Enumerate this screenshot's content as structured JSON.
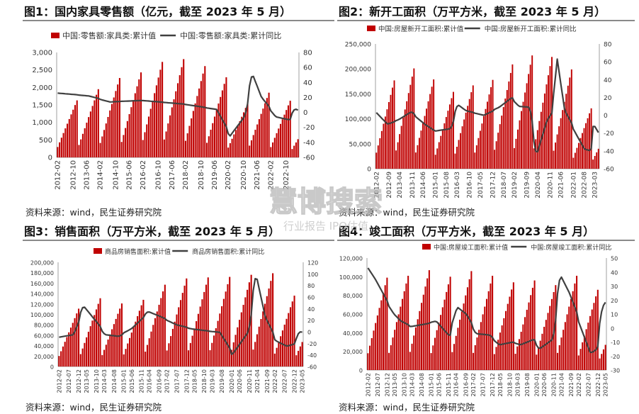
{
  "panels": [
    {
      "title": "图1：国内家具零售额（亿元，截至 2023 年 5 月）",
      "source": "资料来源：wind，民生证券研究院"
    },
    {
      "title": "图2：新开工面积（万平方米，截至 2023 年 5 月）",
      "source": "资料来源：wind，民生证券研究院"
    },
    {
      "title": "图3：销售面积（万平方米，截至 2023 年 5 月）",
      "source": "资料来源：wind，民生证券研究院"
    },
    {
      "title": "图4：竣工面积（万平方米，截至 2023 年 5 月）",
      "source": "资料来源：wind，民生证券研究院"
    }
  ],
  "watermark": {
    "main": "慧博搜索",
    "sub": "行业报告 IPO估值"
  },
  "colors": {
    "bar": "#c00000",
    "line": "#404040",
    "grid": "#d9d9d9"
  },
  "chart_data": [
    {
      "type": "bar",
      "legend": [
        "中国:零售额:家具类:累计值",
        "中国:零售额:家具类:累计同比"
      ],
      "ylim": [
        0,
        3000
      ],
      "y2lim": [
        -60,
        80
      ],
      "yticks": [
        "0",
        "500",
        "1,000",
        "1,500",
        "2,000",
        "2,500",
        "3,000"
      ],
      "y2ticks": [
        "-60",
        "-40",
        "-20",
        "0",
        "20",
        "40",
        "60",
        "80"
      ],
      "xticks": [
        "2012-02",
        "2012-10",
        "2013-06",
        "2014-02",
        "2014-10",
        "2015-06",
        "2016-02",
        "2016-10",
        "2017-06",
        "2018-02",
        "2018-10",
        "2019-06",
        "2020-02",
        "2020-10",
        "2021-06",
        "2022-02",
        "2022-10"
      ],
      "start": [
        2012,
        2
      ],
      "end": [
        2023,
        5
      ],
      "annual_peaks": [
        1630,
        1950,
        2270,
        2430,
        2730,
        2810,
        2610,
        2290,
        1540,
        1850,
        1620,
        520
      ],
      "yoy_anchors": [
        [
          2012,
          26
        ],
        [
          2013.5,
          22
        ],
        [
          2014.5,
          14
        ],
        [
          2016,
          16
        ],
        [
          2018,
          11
        ],
        [
          2019.5,
          4
        ],
        [
          2020.15,
          -32
        ],
        [
          2020.8,
          -5
        ],
        [
          2021.2,
          52
        ],
        [
          2021.6,
          20
        ],
        [
          2022.3,
          -6
        ],
        [
          2022.9,
          -10
        ],
        [
          2023.2,
          5
        ],
        [
          2023.4,
          2
        ]
      ]
    },
    {
      "type": "bar",
      "legend": [
        "中国:房屋新开工面积:累计值",
        "中国:房屋新开工面积:累计同比"
      ],
      "ylim": [
        0,
        250000
      ],
      "y2lim": [
        -60,
        80
      ],
      "yticks": [
        "0",
        "50,000",
        "100,000",
        "150,000",
        "200,000",
        "250,000"
      ],
      "y2ticks": [
        "-60",
        "-40",
        "-20",
        "0",
        "20",
        "40",
        "60",
        "80"
      ],
      "xticks": [
        "2012-02",
        "2012-09",
        "2013-04",
        "2013-11",
        "2014-06",
        "2015-01",
        "2015-08",
        "2016-03",
        "2016-10",
        "2017-05",
        "2017-12",
        "2018-07",
        "2019-02",
        "2019-09",
        "2020-04",
        "2020-11",
        "2021-06",
        "2022-01",
        "2022-08",
        "2023-03"
      ],
      "start": [
        2012,
        2
      ],
      "end": [
        2023,
        5
      ],
      "annual_peaks": [
        177000,
        201000,
        179000,
        154000,
        167000,
        178000,
        209000,
        227000,
        224000,
        199000,
        121000,
        40000
      ],
      "yoy_anchors": [
        [
          2012,
          5
        ],
        [
          2012.6,
          -10
        ],
        [
          2013.2,
          -5
        ],
        [
          2013.8,
          4
        ],
        [
          2014.5,
          -10
        ],
        [
          2015,
          -18
        ],
        [
          2015.8,
          -15
        ],
        [
          2016.2,
          12
        ],
        [
          2016.6,
          5
        ],
        [
          2017.5,
          0
        ],
        [
          2018.3,
          9
        ],
        [
          2018.9,
          20
        ],
        [
          2019.3,
          10
        ],
        [
          2019.8,
          9
        ],
        [
          2020.2,
          -45
        ],
        [
          2020.7,
          -5
        ],
        [
          2021.0,
          5
        ],
        [
          2021.25,
          63
        ],
        [
          2021.6,
          5
        ],
        [
          2022.0,
          -12
        ],
        [
          2022.6,
          -38
        ],
        [
          2022.9,
          -40
        ],
        [
          2023.1,
          -10
        ],
        [
          2023.4,
          -22
        ]
      ]
    },
    {
      "type": "bar",
      "legend": [
        "商品房销售面积:累计值",
        "商品房销售面积:累计同比"
      ],
      "ylim": [
        0,
        200000
      ],
      "y2lim": [
        -60,
        120
      ],
      "yticks": [
        "0",
        "20,000",
        "40,000",
        "60,000",
        "80,000",
        "100,000",
        "120,000",
        "140,000",
        "160,000",
        "180,000",
        "200,000"
      ],
      "y2ticks": [
        "-60",
        "-40",
        "-20",
        "0",
        "20",
        "40",
        "60",
        "80",
        "100",
        "120"
      ],
      "xticks": [
        "2012-02",
        "2012-07",
        "2012-12",
        "2013-05",
        "2013-10",
        "2014-03",
        "2014-08",
        "2015-01",
        "2015-06",
        "2015-11",
        "2016-04",
        "2016-09",
        "2017-02",
        "2017-07",
        "2017-12",
        "2018-05",
        "2018-10",
        "2019-03",
        "2019-08",
        "2020-01",
        "2020-06",
        "2020-11",
        "2021-04",
        "2021-09",
        "2022-02",
        "2022-07",
        "2022-12",
        "2023-05"
      ],
      "start": [
        2012,
        2
      ],
      "end": [
        2023,
        5
      ],
      "annual_peaks": [
        111000,
        131000,
        121000,
        128000,
        157000,
        169000,
        171000,
        172000,
        176000,
        179000,
        136000,
        47000
      ],
      "yoy_anchors": [
        [
          2012,
          -10
        ],
        [
          2012.7,
          -5
        ],
        [
          2013.2,
          45
        ],
        [
          2013.6,
          25
        ],
        [
          2014.2,
          -5
        ],
        [
          2014.8,
          -8
        ],
        [
          2015.4,
          5
        ],
        [
          2016.2,
          35
        ],
        [
          2016.8,
          25
        ],
        [
          2017.5,
          12
        ],
        [
          2018.2,
          5
        ],
        [
          2018.8,
          2
        ],
        [
          2019.5,
          -1
        ],
        [
          2020.1,
          -40
        ],
        [
          2020.8,
          0
        ],
        [
          2021.2,
          100
        ],
        [
          2021.6,
          25
        ],
        [
          2022.1,
          -15
        ],
        [
          2022.6,
          -25
        ],
        [
          2023.0,
          -20
        ],
        [
          2023.2,
          0
        ],
        [
          2023.4,
          -1
        ]
      ]
    },
    {
      "type": "bar",
      "legend": [
        "中国:房屋竣工面积:累计值",
        "中国:房屋竣工面积:累计同比"
      ],
      "ylim": [
        0,
        120000
      ],
      "y2lim": [
        -30,
        50
      ],
      "yticks": [
        "0",
        "20,000",
        "40,000",
        "60,000",
        "80,000",
        "100,000",
        "120,000"
      ],
      "y2ticks": [
        "-30",
        "-20",
        "-10",
        "0",
        "10",
        "20",
        "30",
        "40",
        "50"
      ],
      "xticks": [
        "2012-02",
        "2012-07",
        "2012-12",
        "2013-05",
        "2013-10",
        "2014-03",
        "2014-08",
        "2015-01",
        "2015-06",
        "2015-11",
        "2016-04",
        "2016-09",
        "2017-02",
        "2017-07",
        "2017-12",
        "2018-05",
        "2018-10",
        "2019-03",
        "2019-08",
        "2020-01",
        "2020-06",
        "2020-11",
        "2021-04",
        "2021-09",
        "2022-02",
        "2022-07",
        "2022-12",
        "2023-05"
      ],
      "start": [
        2012,
        2
      ],
      "end": [
        2023,
        5
      ],
      "annual_peaks": [
        99000,
        101000,
        107000,
        100000,
        106000,
        101000,
        94000,
        96000,
        91000,
        101000,
        86000,
        27000
      ],
      "yoy_anchors": [
        [
          2012,
          45
        ],
        [
          2012.4,
          35
        ],
        [
          2012.9,
          20
        ],
        [
          2013.3,
          10
        ],
        [
          2013.6,
          5
        ],
        [
          2014.1,
          1
        ],
        [
          2014.8,
          3
        ],
        [
          2015.3,
          5
        ],
        [
          2015.9,
          -6
        ],
        [
          2016.3,
          15
        ],
        [
          2016.7,
          10
        ],
        [
          2017.2,
          -4
        ],
        [
          2017.8,
          -5
        ],
        [
          2018.3,
          -12
        ],
        [
          2018.9,
          -10
        ],
        [
          2019.3,
          -12
        ],
        [
          2019.9,
          -8
        ],
        [
          2020.2,
          -15
        ],
        [
          2020.8,
          -8
        ],
        [
          2021.2,
          38
        ],
        [
          2021.6,
          25
        ],
        [
          2022.0,
          8
        ],
        [
          2022.6,
          -18
        ],
        [
          2022.9,
          -15
        ],
        [
          2023.2,
          15
        ],
        [
          2023.4,
          20
        ]
      ]
    }
  ]
}
